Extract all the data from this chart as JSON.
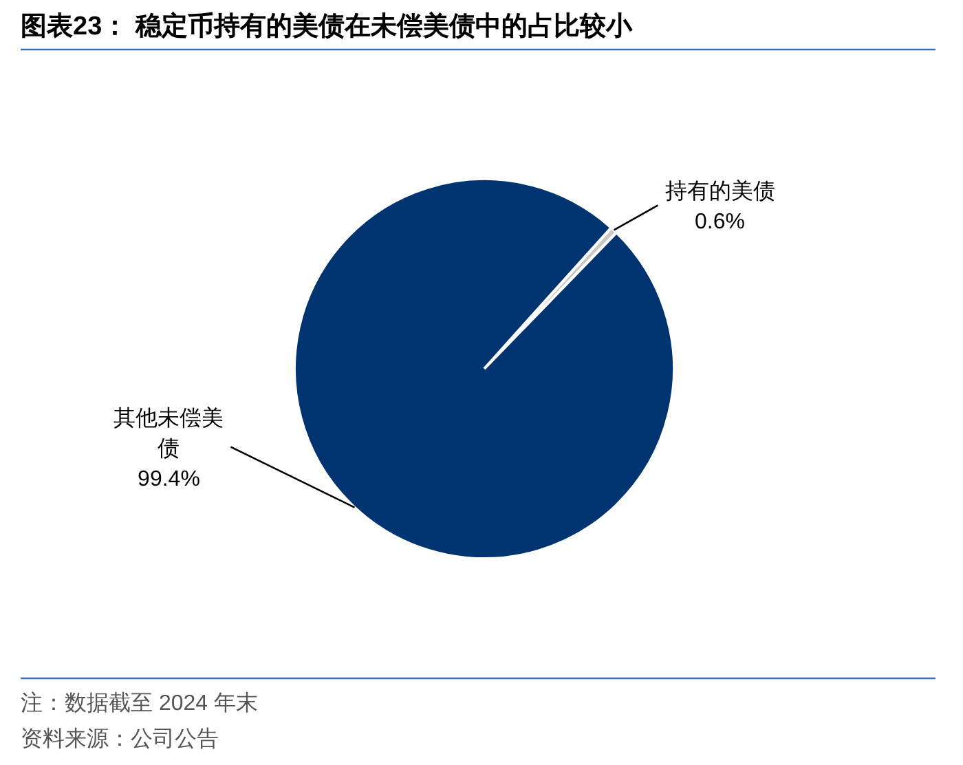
{
  "chart_data": {
    "type": "pie",
    "title": "图表23：  稳定币持有的美债在未偿美债中的占比较小",
    "categories": [
      "持有的美债",
      "其他未偿美债"
    ],
    "values": [
      0.6,
      99.4
    ],
    "colors": [
      "#c8c8c8",
      "#003470"
    ],
    "value_labels": [
      "0.6%",
      "99.4%"
    ],
    "annotations": [
      "注：数据截至 2024 年末",
      "资料来源：公司公告"
    ]
  }
}
